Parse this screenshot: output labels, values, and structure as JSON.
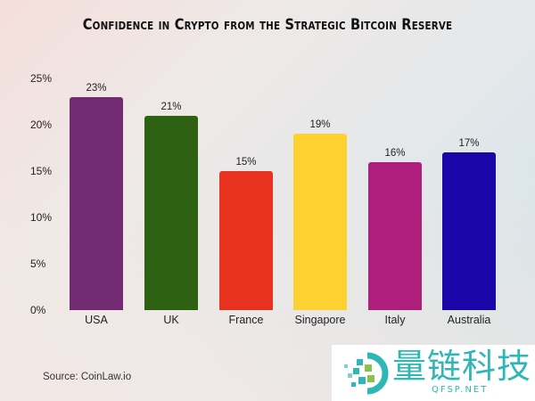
{
  "title": "Confidence in Crypto from the Strategic Bitcoin Reserve",
  "source": "Source: CoinLaw.io",
  "watermark": {
    "chinese": "量链科技",
    "latin": "QFSP.NET",
    "color": "#2fb7b5"
  },
  "y_ticks": [
    "0%",
    "5%",
    "10%",
    "15%",
    "20%",
    "25%"
  ],
  "bars": [
    {
      "label": "USA",
      "value_label": "23%",
      "color": "#722a73"
    },
    {
      "label": "UK",
      "value_label": "21%",
      "color": "#2e6212"
    },
    {
      "label": "France",
      "value_label": "15%",
      "color": "#e8321f"
    },
    {
      "label": "Singapore",
      "value_label": "19%",
      "color": "#fdd230"
    },
    {
      "label": "Italy",
      "value_label": "16%",
      "color": "#b01e7b"
    },
    {
      "label": "Australia",
      "value_label": "17%",
      "color": "#1a05a8"
    }
  ],
  "chart_data": {
    "type": "bar",
    "title": "Confidence in Crypto from the Strategic Bitcoin Reserve",
    "categories": [
      "USA",
      "UK",
      "France",
      "Singapore",
      "Italy",
      "Australia"
    ],
    "values": [
      23,
      21,
      15,
      19,
      16,
      17
    ],
    "value_labels": [
      "23%",
      "21%",
      "15%",
      "19%",
      "16%",
      "17%"
    ],
    "colors": [
      "#722a73",
      "#2e6212",
      "#e8321f",
      "#fdd230",
      "#b01e7b",
      "#1a05a8"
    ],
    "xlabel": "",
    "ylabel": "",
    "ylim": [
      0,
      25
    ],
    "yticks": [
      "0%",
      "5%",
      "10%",
      "15%",
      "20%",
      "25%"
    ],
    "grid": false,
    "legend": "none",
    "source": "Source: CoinLaw.io"
  }
}
